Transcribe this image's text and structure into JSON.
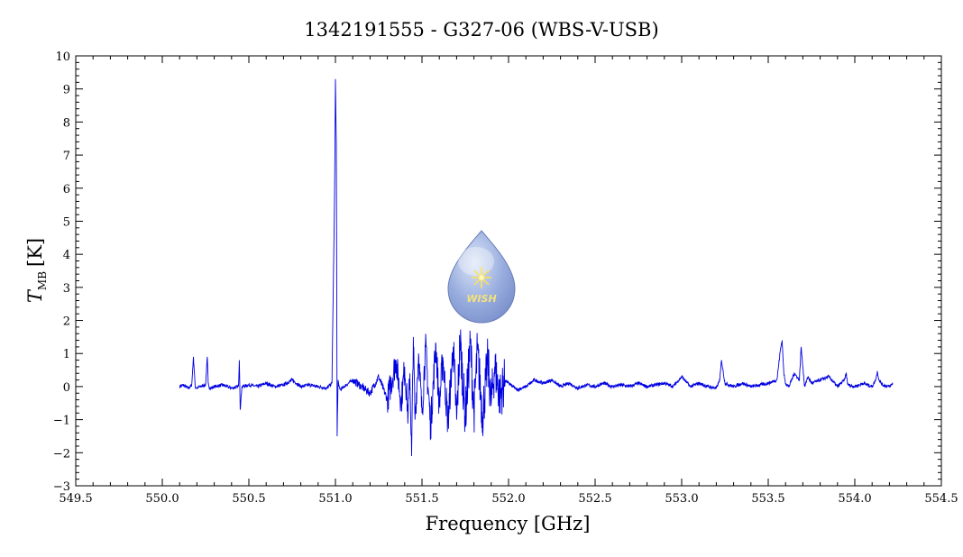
{
  "chart_data": {
    "type": "line",
    "title": "1342191555 - G327-06 (WBS-V-USB)",
    "xlabel": "Frequency [GHz]",
    "ylabel": {
      "symbol": "T",
      "subscript": "MB",
      "unit": "[K]"
    },
    "xlim": [
      549.5,
      554.5
    ],
    "ylim": [
      -3,
      10
    ],
    "xticks": [
      "549.5",
      "550.0",
      "550.5",
      "551.0",
      "551.5",
      "552.0",
      "552.5",
      "553.0",
      "553.5",
      "554.0",
      "554.5"
    ],
    "yticks": [
      "−3",
      "−2",
      "−1",
      "0",
      "1",
      "2",
      "3",
      "4",
      "5",
      "6",
      "7",
      "8",
      "9",
      "10"
    ],
    "grid": false,
    "line_color": "#0000e0",
    "series": [
      {
        "x": [
          550.1,
          550.12,
          550.15,
          550.17,
          550.18,
          550.19,
          550.2,
          550.22,
          550.25,
          550.26,
          550.265,
          550.27,
          550.28,
          550.3,
          550.35,
          550.4,
          550.44,
          550.445,
          550.45,
          550.46,
          550.5,
          550.55,
          550.6,
          550.65,
          550.7,
          550.75,
          550.8,
          550.85,
          550.9,
          550.95,
          550.98,
          550.995,
          551.0,
          551.005,
          551.01,
          551.015,
          551.02,
          551.03,
          551.05,
          551.1,
          551.15,
          551.2,
          551.25,
          551.3,
          551.35,
          551.38,
          551.4,
          551.42,
          551.43,
          551.44,
          551.45,
          551.46,
          551.48,
          551.5,
          551.52,
          551.55,
          551.58,
          551.6,
          551.62,
          551.65,
          551.68,
          551.7,
          551.72,
          551.75,
          551.78,
          551.8,
          551.82,
          551.85,
          551.88,
          551.9,
          551.92,
          551.95,
          551.98,
          552.0,
          552.05,
          552.1,
          552.15,
          552.2,
          552.25,
          552.3,
          552.35,
          552.4,
          552.45,
          552.5,
          552.55,
          552.6,
          552.65,
          552.7,
          552.75,
          552.8,
          552.85,
          552.9,
          552.95,
          553.0,
          553.05,
          553.1,
          553.15,
          553.2,
          553.22,
          553.23,
          553.25,
          553.3,
          553.35,
          553.4,
          553.45,
          553.5,
          553.55,
          553.57,
          553.58,
          553.59,
          553.6,
          553.62,
          553.65,
          553.68,
          553.69,
          553.7,
          553.71,
          553.73,
          553.75,
          553.8,
          553.85,
          553.9,
          553.94,
          553.95,
          553.96,
          554.0,
          554.05,
          554.1,
          554.12,
          554.13,
          554.14,
          554.16,
          554.2,
          554.22
        ],
        "y": [
          0.0,
          0.05,
          -0.05,
          0.05,
          0.9,
          0.0,
          -0.05,
          0.0,
          0.05,
          0.9,
          0.1,
          0.0,
          -0.05,
          0.0,
          0.05,
          -0.05,
          0.0,
          0.8,
          -0.7,
          0.0,
          0.05,
          0.0,
          0.1,
          0.0,
          0.05,
          0.2,
          0.0,
          0.05,
          0.0,
          -0.05,
          0.1,
          5.8,
          9.3,
          7.4,
          -1.5,
          0.2,
          0.0,
          -0.1,
          0.0,
          0.2,
          0.0,
          -0.2,
          0.3,
          -0.4,
          0.8,
          -0.5,
          0.6,
          -0.9,
          0.4,
          -2.1,
          1.5,
          -1.0,
          1.0,
          -0.8,
          1.2,
          -1.2,
          1.3,
          -0.6,
          0.9,
          -1.1,
          1.2,
          -1.0,
          1.4,
          -0.9,
          1.3,
          -0.8,
          1.1,
          -0.9,
          0.8,
          -0.5,
          0.6,
          -0.3,
          0.2,
          0.1,
          -0.1,
          0.0,
          0.2,
          0.1,
          0.2,
          0.0,
          0.1,
          -0.05,
          0.05,
          0.0,
          0.1,
          0.0,
          0.05,
          0.0,
          0.1,
          0.0,
          0.05,
          0.1,
          0.0,
          0.3,
          0.0,
          0.1,
          0.0,
          -0.05,
          0.2,
          0.8,
          0.1,
          0.0,
          0.1,
          0.0,
          0.05,
          0.1,
          0.2,
          1.1,
          1.4,
          0.4,
          0.1,
          0.0,
          0.4,
          0.2,
          1.2,
          0.6,
          0.0,
          0.3,
          0.1,
          0.2,
          0.3,
          0.0,
          0.2,
          0.4,
          0.05,
          0.0,
          0.1,
          0.0,
          0.2,
          0.45,
          0.2,
          0.05,
          0.0,
          0.1
        ]
      }
    ]
  },
  "watermark": {
    "text": "WISH"
  }
}
